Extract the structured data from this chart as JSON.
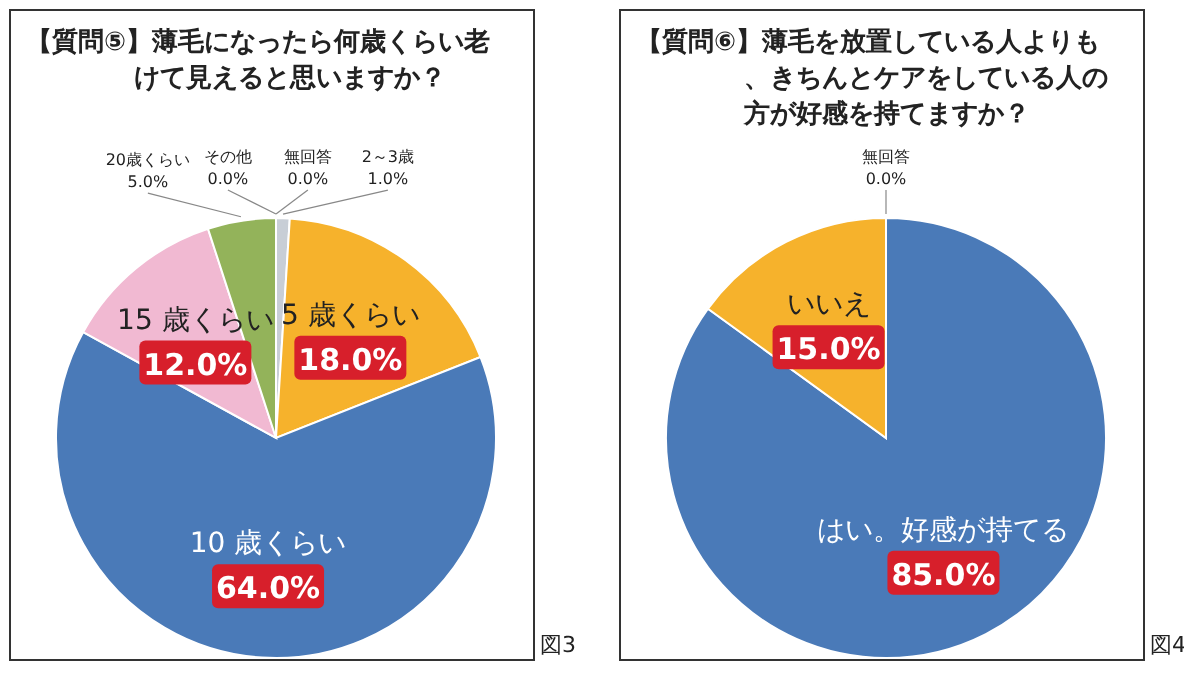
{
  "chart_data": [
    {
      "type": "pie",
      "title": "【質問⑤】薄毛になったら何歳くらい老けて見えると思いますか？",
      "categories": [
        "2～3歳",
        "5 歳くらい",
        "10 歳くらい",
        "15 歳くらい",
        "20歳くらい",
        "その他",
        "無回答"
      ],
      "values": [
        1.0,
        18.0,
        64.0,
        12.0,
        5.0,
        0.0,
        0.0
      ],
      "value_labels": [
        "1.0%",
        "18.0%",
        "64.0%",
        "12.0%",
        "5.0%",
        "0.0%",
        "0.0%"
      ],
      "colors": [
        "#c8ced6",
        "#f6b22c",
        "#4a7ab8",
        "#f1b9d2",
        "#93b35a",
        "#bbbbbb",
        "#bbbbbb"
      ],
      "annotations": [
        "図3"
      ]
    },
    {
      "type": "pie",
      "title": "【質問⑥】薄毛を放置している人よりも、きちんとケアをしている人の方が好感を持てますか？",
      "categories": [
        "はい。好感が持てる",
        "いいえ",
        "無回答"
      ],
      "values": [
        85.0,
        15.0,
        0.0
      ],
      "value_labels": [
        "85.0%",
        "15.0%",
        "0.0%"
      ],
      "colors": [
        "#4a7ab8",
        "#f6b22c",
        "#bbbbbb"
      ],
      "annotations": [
        "図4"
      ]
    }
  ]
}
